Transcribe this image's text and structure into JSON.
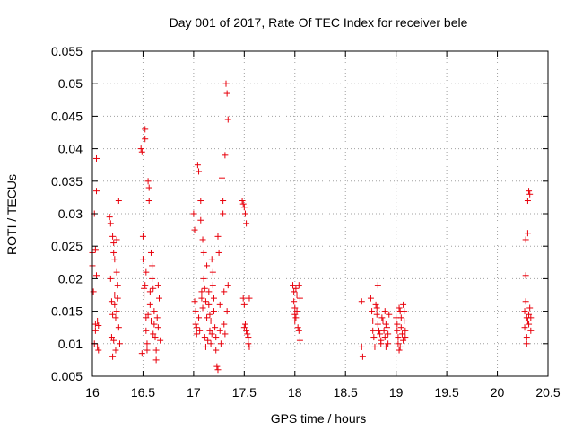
{
  "chart_data": {
    "type": "scatter",
    "title": "Day 001 of 2017, Rate Of TEC Index for receiver bele",
    "xlabel": "GPS time / hours",
    "ylabel": "ROTI / TECUs",
    "xlim": [
      16,
      20.5
    ],
    "ylim": [
      0.005,
      0.055
    ],
    "xticks": [
      16,
      16.5,
      17,
      17.5,
      18,
      18.5,
      19,
      19.5,
      20,
      20.5
    ],
    "xtick_labels": [
      "16",
      "16.5",
      "17",
      "17.5",
      "18",
      "18.5",
      "19",
      "19.5",
      "20",
      "20.5"
    ],
    "yticks": [
      0.005,
      0.01,
      0.015,
      0.02,
      0.025,
      0.03,
      0.035,
      0.04,
      0.045,
      0.05,
      0.055
    ],
    "ytick_labels": [
      "0.005",
      "0.01",
      "0.015",
      "0.02",
      "0.025",
      "0.03",
      "0.035",
      "0.04",
      "0.045",
      "0.05",
      "0.055"
    ],
    "grid": true,
    "marker": "+",
    "marker_color": "#e8000b",
    "series": [
      {
        "name": "ROTI",
        "points": [
          [
            16.0,
            0.024
          ],
          [
            16.0,
            0.022
          ],
          [
            16.01,
            0.018
          ],
          [
            16.02,
            0.03
          ],
          [
            16.02,
            0.01
          ],
          [
            16.03,
            0.013
          ],
          [
            16.03,
            0.012
          ],
          [
            16.04,
            0.0385
          ],
          [
            16.04,
            0.0335
          ],
          [
            16.05,
            0.0135
          ],
          [
            16.05,
            0.0095
          ],
          [
            16.06,
            0.009
          ],
          [
            16.03,
            0.0245
          ],
          [
            16.04,
            0.0205
          ],
          [
            16.06,
            0.0128
          ],
          [
            16.17,
            0.0295
          ],
          [
            16.18,
            0.0285
          ],
          [
            16.18,
            0.02
          ],
          [
            16.19,
            0.0165
          ],
          [
            16.19,
            0.011
          ],
          [
            16.2,
            0.008
          ],
          [
            16.2,
            0.0265
          ],
          [
            16.21,
            0.0255
          ],
          [
            16.21,
            0.024
          ],
          [
            16.22,
            0.0175
          ],
          [
            16.22,
            0.016
          ],
          [
            16.23,
            0.014
          ],
          [
            16.23,
            0.009
          ],
          [
            16.24,
            0.026
          ],
          [
            16.24,
            0.021
          ],
          [
            16.25,
            0.019
          ],
          [
            16.25,
            0.017
          ],
          [
            16.26,
            0.032
          ],
          [
            16.26,
            0.0125
          ],
          [
            16.27,
            0.01
          ],
          [
            16.2,
            0.0145
          ],
          [
            16.22,
            0.023
          ],
          [
            16.24,
            0.015
          ],
          [
            16.21,
            0.0105
          ],
          [
            16.48,
            0.04
          ],
          [
            16.49,
            0.0395
          ],
          [
            16.5,
            0.0265
          ],
          [
            16.5,
            0.023
          ],
          [
            16.51,
            0.0185
          ],
          [
            16.51,
            0.0175
          ],
          [
            16.52,
            0.043
          ],
          [
            16.52,
            0.0415
          ],
          [
            16.52,
            0.019
          ],
          [
            16.53,
            0.014
          ],
          [
            16.53,
            0.012
          ],
          [
            16.54,
            0.01
          ],
          [
            16.54,
            0.009
          ],
          [
            16.55,
            0.035
          ],
          [
            16.56,
            0.034
          ],
          [
            16.56,
            0.032
          ],
          [
            16.57,
            0.018
          ],
          [
            16.57,
            0.016
          ],
          [
            16.58,
            0.0135
          ],
          [
            16.58,
            0.024
          ],
          [
            16.59,
            0.022
          ],
          [
            16.59,
            0.02
          ],
          [
            16.6,
            0.0185
          ],
          [
            16.61,
            0.015
          ],
          [
            16.61,
            0.013
          ],
          [
            16.62,
            0.011
          ],
          [
            16.63,
            0.009
          ],
          [
            16.63,
            0.0075
          ],
          [
            16.64,
            0.014
          ],
          [
            16.65,
            0.0125
          ],
          [
            16.65,
            0.019
          ],
          [
            16.66,
            0.017
          ],
          [
            16.67,
            0.0105
          ],
          [
            16.49,
            0.0085
          ],
          [
            16.55,
            0.0145
          ],
          [
            16.6,
            0.0115
          ],
          [
            16.53,
            0.021
          ],
          [
            17.0,
            0.03
          ],
          [
            17.01,
            0.0275
          ],
          [
            17.01,
            0.0165
          ],
          [
            17.02,
            0.015
          ],
          [
            17.02,
            0.013
          ],
          [
            17.03,
            0.0125
          ],
          [
            17.03,
            0.0115
          ],
          [
            17.04,
            0.0375
          ],
          [
            17.05,
            0.0365
          ],
          [
            17.05,
            0.014
          ],
          [
            17.06,
            0.012
          ],
          [
            17.07,
            0.032
          ],
          [
            17.07,
            0.029
          ],
          [
            17.08,
            0.018
          ],
          [
            17.08,
            0.017
          ],
          [
            17.09,
            0.026
          ],
          [
            17.1,
            0.024
          ],
          [
            17.1,
            0.02
          ],
          [
            17.11,
            0.0185
          ],
          [
            17.11,
            0.011
          ],
          [
            17.12,
            0.0095
          ],
          [
            17.13,
            0.022
          ],
          [
            17.13,
            0.014
          ],
          [
            17.14,
            0.0105
          ],
          [
            17.15,
            0.018
          ],
          [
            17.15,
            0.016
          ],
          [
            17.16,
            0.012
          ],
          [
            17.17,
            0.0135
          ],
          [
            17.17,
            0.01
          ],
          [
            17.18,
            0.023
          ],
          [
            17.19,
            0.021
          ],
          [
            17.19,
            0.019
          ],
          [
            17.2,
            0.017
          ],
          [
            17.2,
            0.015
          ],
          [
            17.21,
            0.0125
          ],
          [
            17.22,
            0.011
          ],
          [
            17.22,
            0.009
          ],
          [
            17.23,
            0.0065
          ],
          [
            17.24,
            0.006
          ],
          [
            17.24,
            0.0265
          ],
          [
            17.25,
            0.024
          ],
          [
            17.26,
            0.016
          ],
          [
            17.26,
            0.012
          ],
          [
            17.27,
            0.01
          ],
          [
            17.28,
            0.0355
          ],
          [
            17.29,
            0.032
          ],
          [
            17.29,
            0.03
          ],
          [
            17.3,
            0.018
          ],
          [
            17.3,
            0.013
          ],
          [
            17.31,
            0.0115
          ],
          [
            17.31,
            0.039
          ],
          [
            17.32,
            0.05
          ],
          [
            17.33,
            0.0485
          ],
          [
            17.33,
            0.015
          ],
          [
            17.34,
            0.0445
          ],
          [
            17.34,
            0.019
          ],
          [
            17.12,
            0.0165
          ],
          [
            17.16,
            0.0145
          ],
          [
            17.09,
            0.0155
          ],
          [
            17.18,
            0.0115
          ],
          [
            17.48,
            0.032
          ],
          [
            17.49,
            0.0315
          ],
          [
            17.5,
            0.031
          ],
          [
            17.51,
            0.03
          ],
          [
            17.52,
            0.0285
          ],
          [
            17.49,
            0.017
          ],
          [
            17.5,
            0.016
          ],
          [
            17.51,
            0.013
          ],
          [
            17.52,
            0.012
          ],
          [
            17.53,
            0.0115
          ],
          [
            17.54,
            0.011
          ],
          [
            17.54,
            0.01
          ],
          [
            17.55,
            0.0095
          ],
          [
            17.55,
            0.017
          ],
          [
            17.5,
            0.0125
          ],
          [
            17.98,
            0.019
          ],
          [
            17.99,
            0.018
          ],
          [
            17.99,
            0.0165
          ],
          [
            18.0,
            0.0155
          ],
          [
            18.0,
            0.0145
          ],
          [
            18.01,
            0.014
          ],
          [
            18.01,
            0.0185
          ],
          [
            18.02,
            0.0175
          ],
          [
            18.02,
            0.015
          ],
          [
            18.03,
            0.0125
          ],
          [
            18.04,
            0.012
          ],
          [
            18.04,
            0.019
          ],
          [
            18.05,
            0.017
          ],
          [
            18.05,
            0.0105
          ],
          [
            18.0,
            0.0135
          ],
          [
            18.66,
            0.0165
          ],
          [
            18.66,
            0.0095
          ],
          [
            18.67,
            0.008
          ],
          [
            18.75,
            0.017
          ],
          [
            18.76,
            0.015
          ],
          [
            18.77,
            0.0135
          ],
          [
            18.77,
            0.012
          ],
          [
            18.78,
            0.011
          ],
          [
            18.79,
            0.0095
          ],
          [
            18.8,
            0.016
          ],
          [
            18.81,
            0.0155
          ],
          [
            18.81,
            0.0145
          ],
          [
            18.82,
            0.019
          ],
          [
            18.82,
            0.013
          ],
          [
            18.83,
            0.012
          ],
          [
            18.84,
            0.0115
          ],
          [
            18.85,
            0.0105
          ],
          [
            18.85,
            0.01
          ],
          [
            18.86,
            0.014
          ],
          [
            18.87,
            0.0135
          ],
          [
            18.88,
            0.012
          ],
          [
            18.89,
            0.015
          ],
          [
            18.89,
            0.011
          ],
          [
            18.9,
            0.013
          ],
          [
            18.91,
            0.0125
          ],
          [
            18.92,
            0.0115
          ],
          [
            18.92,
            0.01
          ],
          [
            18.93,
            0.0145
          ],
          [
            18.9,
            0.0095
          ],
          [
            19.0,
            0.014
          ],
          [
            19.01,
            0.013
          ],
          [
            19.01,
            0.012
          ],
          [
            19.02,
            0.011
          ],
          [
            19.02,
            0.01
          ],
          [
            19.03,
            0.009
          ],
          [
            19.03,
            0.0155
          ],
          [
            19.04,
            0.015
          ],
          [
            19.05,
            0.014
          ],
          [
            19.05,
            0.0125
          ],
          [
            19.06,
            0.0115
          ],
          [
            19.07,
            0.0105
          ],
          [
            19.07,
            0.016
          ],
          [
            19.08,
            0.015
          ],
          [
            19.08,
            0.0135
          ],
          [
            19.09,
            0.012
          ],
          [
            19.09,
            0.011
          ],
          [
            19.04,
            0.0095
          ],
          [
            20.27,
            0.015
          ],
          [
            20.27,
            0.0125
          ],
          [
            20.28,
            0.026
          ],
          [
            20.28,
            0.0205
          ],
          [
            20.28,
            0.0165
          ],
          [
            20.29,
            0.014
          ],
          [
            20.29,
            0.011
          ],
          [
            20.29,
            0.01
          ],
          [
            20.3,
            0.032
          ],
          [
            20.3,
            0.027
          ],
          [
            20.31,
            0.0335
          ],
          [
            20.31,
            0.0145
          ],
          [
            20.31,
            0.013
          ],
          [
            20.32,
            0.033
          ],
          [
            20.32,
            0.0155
          ],
          [
            20.33,
            0.014
          ],
          [
            20.33,
            0.012
          ],
          [
            20.3,
            0.0135
          ]
        ]
      }
    ]
  }
}
